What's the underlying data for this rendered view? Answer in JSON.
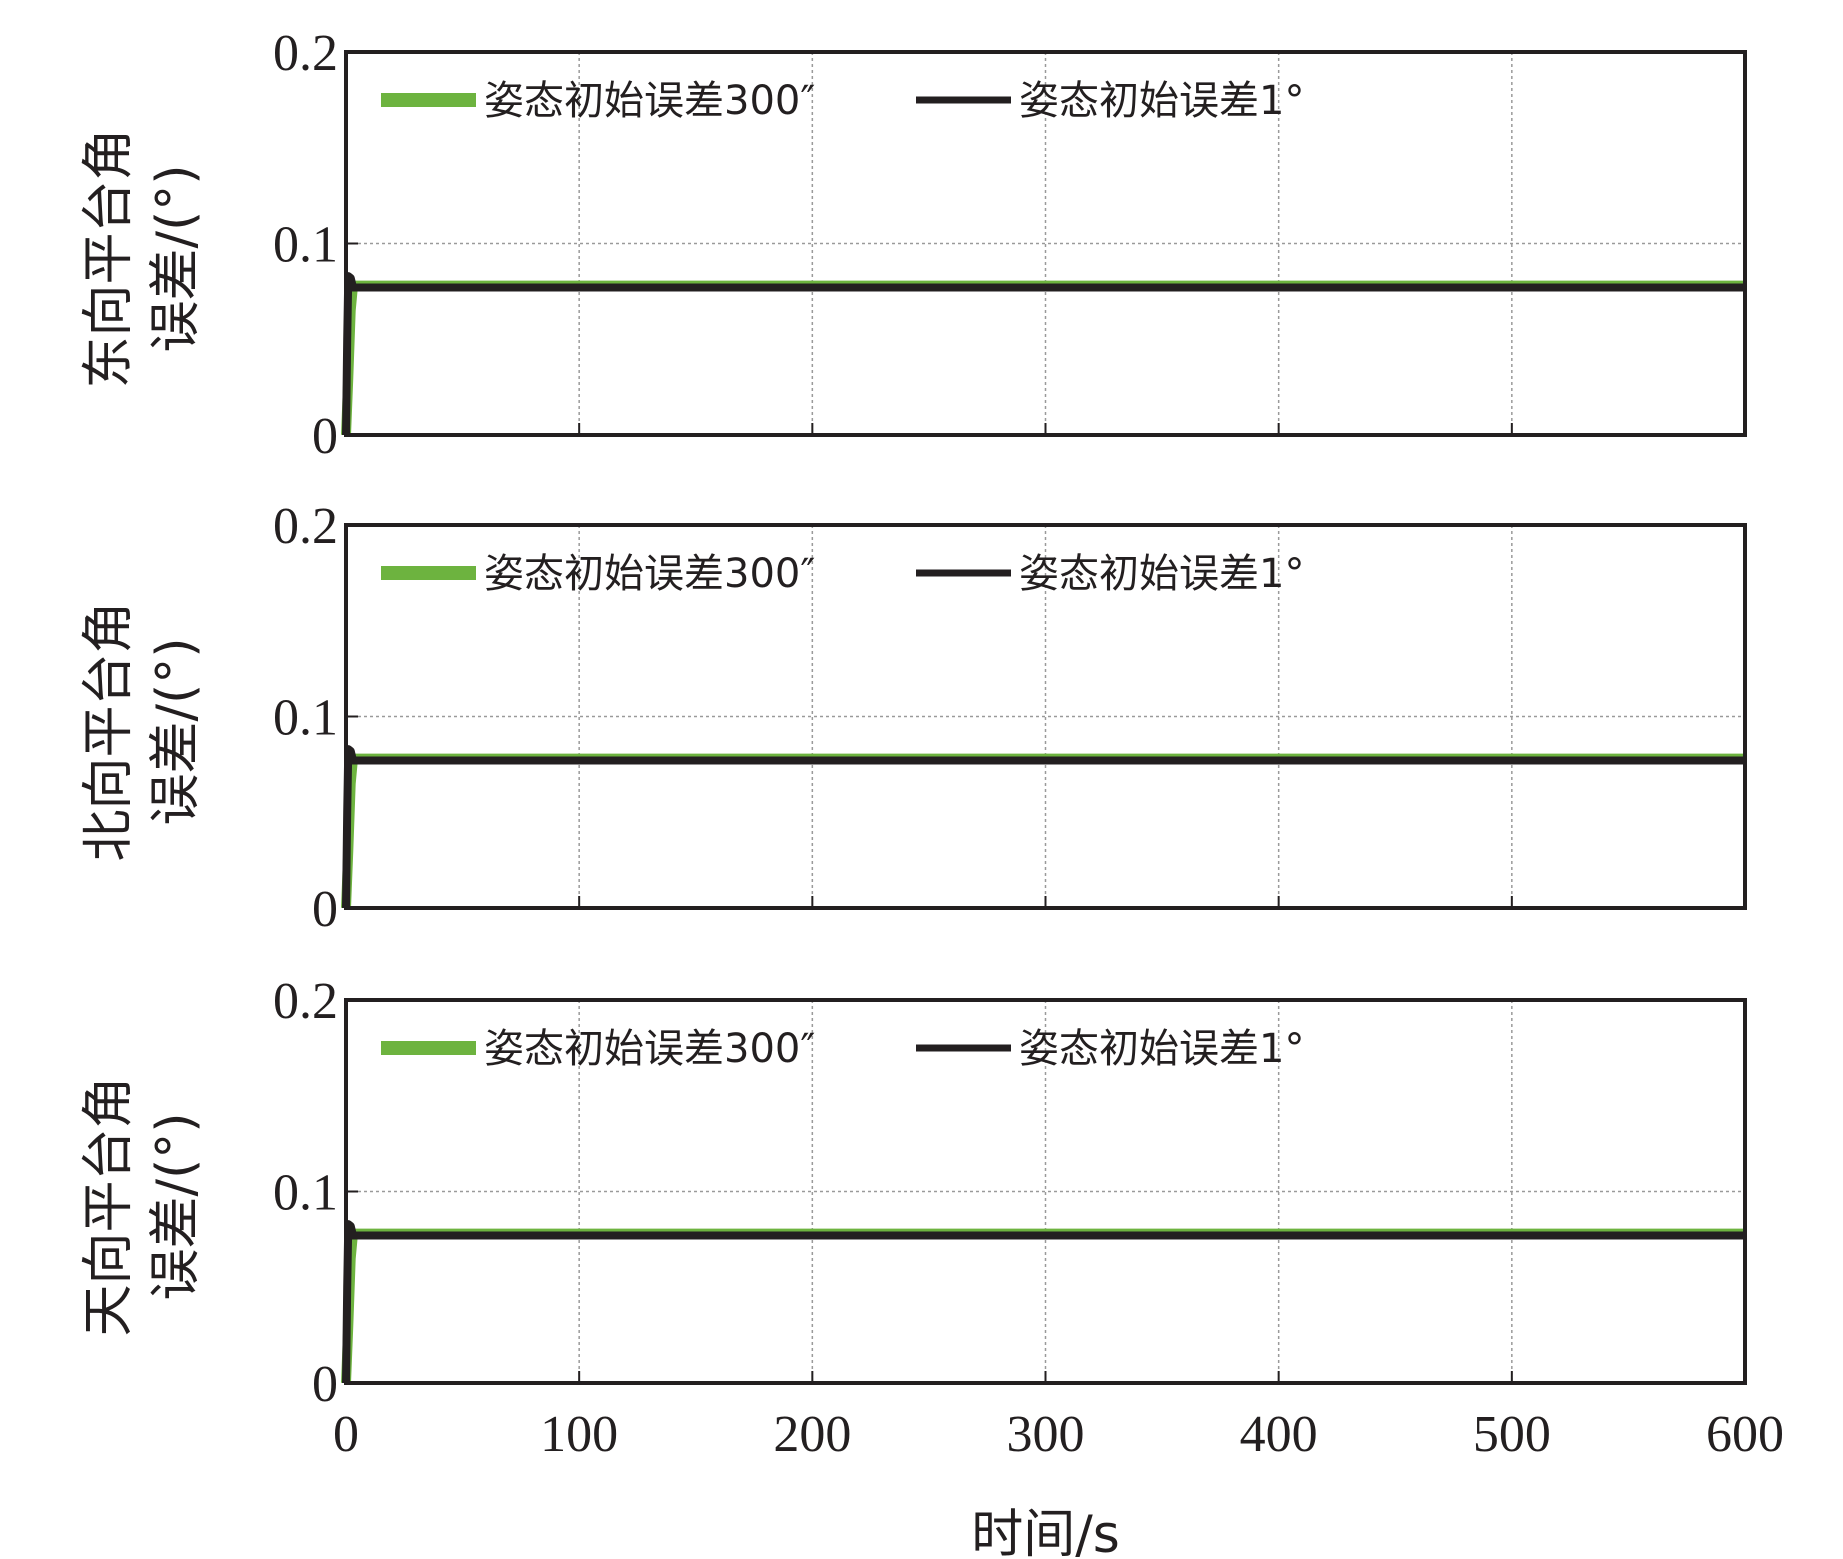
{
  "chart_data": [
    {
      "type": "line",
      "ylabel_lines": [
        "东向平台角",
        "误差/(°)"
      ],
      "xlim": [
        0,
        600
      ],
      "ylim": [
        0,
        0.2
      ],
      "xticks": [
        0,
        100,
        200,
        300,
        400,
        500,
        600
      ],
      "yticks": [
        0,
        0.1,
        0.2
      ],
      "ytick_labels": [
        "0",
        "0.1",
        "0.2"
      ],
      "grid": true,
      "legend_position": "top",
      "series": [
        {
          "name": "姿态初始误差300″",
          "color": "#6db33f",
          "x": [
            0,
            1,
            2,
            3,
            600
          ],
          "y": [
            0,
            0.03,
            0.065,
            0.078,
            0.078
          ]
        },
        {
          "name": "姿态初始误差1°",
          "color": "#231f20",
          "x": [
            0,
            0.5,
            1,
            2,
            3,
            600
          ],
          "y": [
            0,
            0.05,
            0.083,
            0.082,
            0.077,
            0.077
          ]
        }
      ]
    },
    {
      "type": "line",
      "ylabel_lines": [
        "北向平台角",
        "误差/(°)"
      ],
      "xlim": [
        0,
        600
      ],
      "ylim": [
        0,
        0.2
      ],
      "xticks": [
        0,
        100,
        200,
        300,
        400,
        500,
        600
      ],
      "yticks": [
        0,
        0.1,
        0.2
      ],
      "ytick_labels": [
        "0",
        "0.1",
        "0.2"
      ],
      "grid": true,
      "legend_position": "top",
      "series": [
        {
          "name": "姿态初始误差300″",
          "color": "#6db33f",
          "x": [
            0,
            1,
            2,
            3,
            600
          ],
          "y": [
            0,
            0.03,
            0.065,
            0.078,
            0.078
          ]
        },
        {
          "name": "姿态初始误差1°",
          "color": "#231f20",
          "x": [
            0,
            0.5,
            1,
            2,
            3,
            600
          ],
          "y": [
            0,
            0.05,
            0.083,
            0.082,
            0.077,
            0.077
          ]
        }
      ]
    },
    {
      "type": "line",
      "ylabel_lines": [
        "天向平台角",
        "误差/(°)"
      ],
      "xlabel": "时间/s",
      "xlim": [
        0,
        600
      ],
      "ylim": [
        0,
        0.2
      ],
      "xticks": [
        0,
        100,
        200,
        300,
        400,
        500,
        600
      ],
      "xtick_labels": [
        "0",
        "100",
        "200",
        "300",
        "400",
        "500",
        "600"
      ],
      "yticks": [
        0,
        0.1,
        0.2
      ],
      "ytick_labels": [
        "0",
        "0.1",
        "0.2"
      ],
      "grid": true,
      "legend_position": "top",
      "series": [
        {
          "name": "姿态初始误差300″",
          "color": "#6db33f",
          "x": [
            0,
            1,
            2,
            3,
            600
          ],
          "y": [
            0,
            0.03,
            0.065,
            0.078,
            0.078
          ]
        },
        {
          "name": "姿态初始误差1°",
          "color": "#231f20",
          "x": [
            0,
            0.5,
            1,
            2,
            3,
            600
          ],
          "y": [
            0,
            0.05,
            0.083,
            0.082,
            0.077,
            0.077
          ]
        }
      ]
    }
  ]
}
